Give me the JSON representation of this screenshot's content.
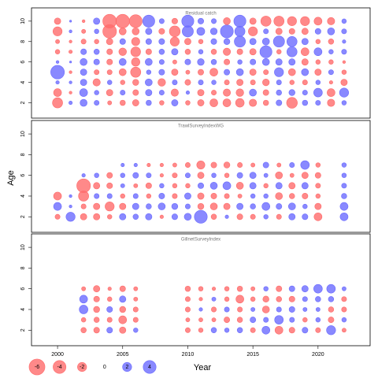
{
  "chart_data": {
    "type": "bubble",
    "x_label": "Year",
    "y_label": "Age",
    "xlim": [
      1998,
      2024
    ],
    "xticks": [
      2000,
      2005,
      2010,
      2015,
      2020
    ],
    "ylim": [
      0.5,
      11.3
    ],
    "yticks": [
      2,
      4,
      6,
      8,
      10
    ],
    "negative_color": "#ff6b6b",
    "positive_color": "#6b6bff",
    "legend": [
      -6,
      -4,
      -2,
      0,
      2,
      4
    ],
    "panels": [
      {
        "title": "Residual catch",
        "x": [
          2000,
          2001,
          2002,
          2003,
          2004,
          2005,
          2006,
          2007,
          2008,
          2009,
          2010,
          2011,
          2012,
          2013,
          2014,
          2015,
          2016,
          2017,
          2018,
          2019,
          2020,
          2021,
          2022
        ],
        "y": [
          2,
          3,
          4,
          5,
          6,
          7,
          8,
          9,
          10
        ],
        "values": [
          [
            -2.5,
            -1.5,
            0.3,
            4.5,
            0.2,
            -0.5,
            -0.4,
            -2,
            -1
          ],
          [
            0.3,
            -0.2,
            0.2,
            -0.2,
            0.1,
            -0.3,
            -0.2,
            0.2,
            0.1
          ],
          [
            1.2,
            1.5,
            1.0,
            1.0,
            1.2,
            0.8,
            -0.6,
            -0.4,
            -0.2
          ],
          [
            0.6,
            0.5,
            -1.3,
            -0.6,
            0.8,
            0.7,
            -0.5,
            0.5,
            1.0
          ],
          [
            -0.4,
            -1.0,
            0.5,
            -0.6,
            -0.8,
            -0.8,
            -1.0,
            -4.5,
            -4.5
          ],
          [
            -0.7,
            0.6,
            -0.5,
            -1.2,
            1.2,
            -1.4,
            0.8,
            -1.2,
            -4.5
          ],
          [
            -1.0,
            -0.8,
            -0.9,
            -2.5,
            -1.7,
            -2.3,
            -1.6,
            -1.2,
            -4.0
          ],
          [
            0.7,
            1.0,
            1.2,
            0.5,
            1.2,
            -0.8,
            0.8,
            1.0,
            3.5
          ],
          [
            -0.5,
            0.6,
            -1.4,
            0.8,
            0.6,
            0.7,
            0.8,
            -0.8,
            0.6
          ],
          [
            1.0,
            -1.3,
            0.6,
            -1.0,
            -0.4,
            1.0,
            -2.0,
            -2.8,
            -0.8
          ],
          [
            -0.5,
            0.3,
            -0.8,
            -0.4,
            0.8,
            -0.7,
            -1.0,
            3.0,
            3.5
          ],
          [
            -1.0,
            -1.0,
            0.6,
            -0.8,
            1.1,
            0.5,
            -0.5,
            1.5,
            0.8
          ],
          [
            -1.5,
            -0.6,
            0.5,
            -1.5,
            0.7,
            -0.7,
            0.8,
            1.1,
            0.6
          ],
          [
            -1.5,
            -1.3,
            -0.6,
            0.8,
            -0.8,
            -1.3,
            0.9,
            4.0,
            -1.2
          ],
          [
            -1.8,
            -1.4,
            -1.0,
            1.2,
            0.5,
            -0.8,
            3.0,
            2.5,
            3.5
          ],
          [
            -1.3,
            1.2,
            -0.6,
            -1.0,
            0.8,
            -1.0,
            1.0,
            -2.0,
            -1.0
          ],
          [
            -0.7,
            -0.8,
            -1.1,
            -0.6,
            1.2,
            3.5,
            1.2,
            0.6,
            -2.5
          ],
          [
            0.8,
            0.7,
            0.6,
            2.0,
            1.0,
            -0.5,
            3.0,
            -1.0,
            -2.5
          ],
          [
            -2.8,
            0.9,
            -0.5,
            -1.2,
            1.0,
            2.5,
            2.5,
            -0.8,
            -2.0
          ],
          [
            0.7,
            0.6,
            -0.6,
            1.2,
            -1.0,
            -1.5,
            1.0,
            -1.0,
            -2.0
          ],
          [
            0.6,
            1.8,
            0.5,
            -1.0,
            -0.5,
            1.5,
            -0.5,
            0.8,
            -1.5
          ],
          [
            -1.3,
            -1.5,
            -0.3,
            0.6,
            -0.5,
            0.5,
            -0.7,
            1.2,
            -1.3
          ],
          [
            0.5,
            2.0,
            -1.0,
            -0.5,
            -0.2,
            0.6,
            0.3,
            0.6,
            0.5
          ]
        ]
      },
      {
        "title": "TrawlSurveyIndexWG",
        "x": [
          2000,
          2001,
          2002,
          2003,
          2004,
          2005,
          2006,
          2007,
          2008,
          2009,
          2010,
          2011,
          2012,
          2013,
          2014,
          2015,
          2016,
          2017,
          2018,
          2019,
          2020,
          2022
        ],
        "y": [
          2,
          3,
          4,
          5,
          6,
          7
        ],
        "values": [
          [
            -0.6,
            1.5,
            -1.5,
            null,
            null,
            null
          ],
          [
            2.0,
            0.2,
            0.2,
            null,
            null,
            null
          ],
          [
            -1.0,
            -0.6,
            -2.5,
            -4.5,
            0.3,
            null
          ],
          [
            -1.0,
            -1.0,
            0.6,
            -1.0,
            0.5,
            null
          ],
          [
            -0.5,
            -2.0,
            0.6,
            -0.8,
            -0.8,
            null
          ],
          [
            1.0,
            -1.0,
            -0.5,
            0.4,
            0.5,
            0.3
          ],
          [
            0.7,
            1.0,
            0.6,
            -0.4,
            0.8,
            0.3
          ],
          [
            1.0,
            0.7,
            -0.5,
            -0.8,
            0.6,
            -0.3
          ],
          [
            -0.3,
            1.2,
            0.8,
            0.5,
            -0.3,
            -0.3
          ],
          [
            0.8,
            0.9,
            -0.6,
            -0.5,
            -0.6,
            -0.4
          ],
          [
            1.2,
            0.6,
            1.0,
            -0.5,
            0.6,
            -0.6
          ],
          [
            4.0,
            -0.9,
            -1.0,
            0.8,
            -1.0,
            -1.6
          ],
          [
            -0.7,
            -1.2,
            -0.8,
            1.2,
            0.5,
            -0.8
          ],
          [
            0.3,
            -1.0,
            -0.6,
            1.5,
            -0.5,
            -0.9
          ],
          [
            -0.8,
            1.0,
            -0.4,
            -1.2,
            0.8,
            -0.6
          ],
          [
            -0.6,
            0.7,
            0.5,
            1.0,
            1.0,
            -0.4
          ],
          [
            0.5,
            1.5,
            0.5,
            -0.5,
            0.4,
            0.8
          ],
          [
            -0.6,
            0.8,
            -1.2,
            1.0,
            -1.2,
            -0.4
          ],
          [
            1.0,
            1.2,
            -0.7,
            -1.0,
            -0.4,
            0.6
          ],
          [
            0.8,
            0.5,
            -0.8,
            1.0,
            -1.0,
            1.8
          ],
          [
            -1.5,
            -1.0,
            -0.5,
            -0.6,
            -0.8,
            -0.5
          ],
          [
            1.5,
            1.5,
            0.7,
            0.6,
            0.5,
            0.5
          ]
        ]
      },
      {
        "title": "GillnetSurveyIndex",
        "x": [
          2002,
          2003,
          2004,
          2005,
          2006,
          2010,
          2011,
          2012,
          2013,
          2014,
          2015,
          2016,
          2017,
          2018,
          2019,
          2020,
          2021,
          2022
        ],
        "y": [
          2,
          3,
          4,
          5,
          6
        ],
        "values": [
          [
            -0.7,
            -0.5,
            1.8,
            1.5,
            -0.4
          ],
          [
            -0.8,
            -0.7,
            -0.9,
            -0.8,
            -1.0
          ],
          [
            0.8,
            -0.6,
            0.8,
            -0.5,
            -0.3
          ],
          [
            -1.0,
            -1.5,
            -0.9,
            1.0,
            -0.8
          ],
          [
            0.5,
            -0.6,
            -0.6,
            -0.4,
            -0.4
          ],
          [
            -0.6,
            -0.4,
            -0.6,
            -0.6,
            -0.7
          ],
          [
            -0.5,
            -0.4,
            0.3,
            -0.3,
            -0.5
          ],
          [
            0.7,
            -0.4,
            -0.6,
            0.4,
            -0.3
          ],
          [
            0.5,
            -0.8,
            0.6,
            -0.5,
            -0.5
          ],
          [
            0.7,
            -0.7,
            -0.6,
            -1.5,
            -0.7
          ],
          [
            -0.6,
            0.8,
            0.4,
            -0.5,
            -0.4
          ],
          [
            1.5,
            0.6,
            -1.2,
            -0.9,
            0.5
          ],
          [
            -1.5,
            1.8,
            0.6,
            -0.7,
            -0.8
          ],
          [
            -0.8,
            0.6,
            0.8,
            -0.8,
            0.8
          ],
          [
            0.8,
            -0.5,
            0.4,
            0.6,
            1.0
          ],
          [
            -0.6,
            0.5,
            0.4,
            0.7,
            1.8
          ],
          [
            2.0,
            -0.8,
            -0.7,
            0.7,
            1.8
          ],
          [
            -0.4,
            0.5,
            -0.6,
            -0.6,
            0.4
          ]
        ]
      }
    ]
  }
}
